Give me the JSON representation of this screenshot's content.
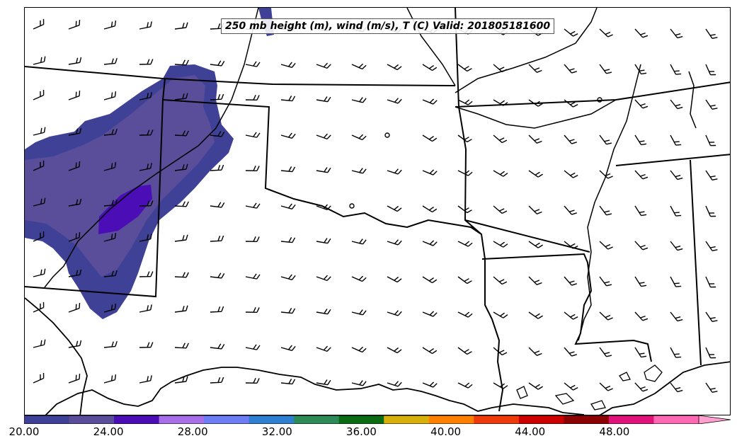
{
  "title": "250 mb height (m), wind (m/s), T (C) Valid: 201805181600",
  "colorbar": {
    "tick_labels": [
      "20.00",
      "24.00",
      "28.00",
      "32.00",
      "36.00",
      "40.00",
      "44.00",
      "48.00"
    ],
    "tick_values": [
      20,
      24,
      28,
      32,
      36,
      40,
      44,
      48
    ],
    "range": [
      20,
      52
    ],
    "extend": "max",
    "colors": [
      "#3e4196",
      "#5a4e9b",
      "#4b0db5",
      "#a86ee8",
      "#6e7cf6",
      "#2e7fcf",
      "#2e8b57",
      "#0a6b12",
      "#d8b00a",
      "#ff7f00",
      "#ee3a0a",
      "#cd0000",
      "#8b0000",
      "#e0127a",
      "#ff69b4"
    ],
    "extend_color": "#ffa0d0"
  },
  "shading": {
    "layer_colors": [
      "#3e4196",
      "#5a4e9b",
      "#4b0db5"
    ]
  },
  "map_colors": {
    "boundary": "#000000",
    "background": "#ffffff"
  }
}
